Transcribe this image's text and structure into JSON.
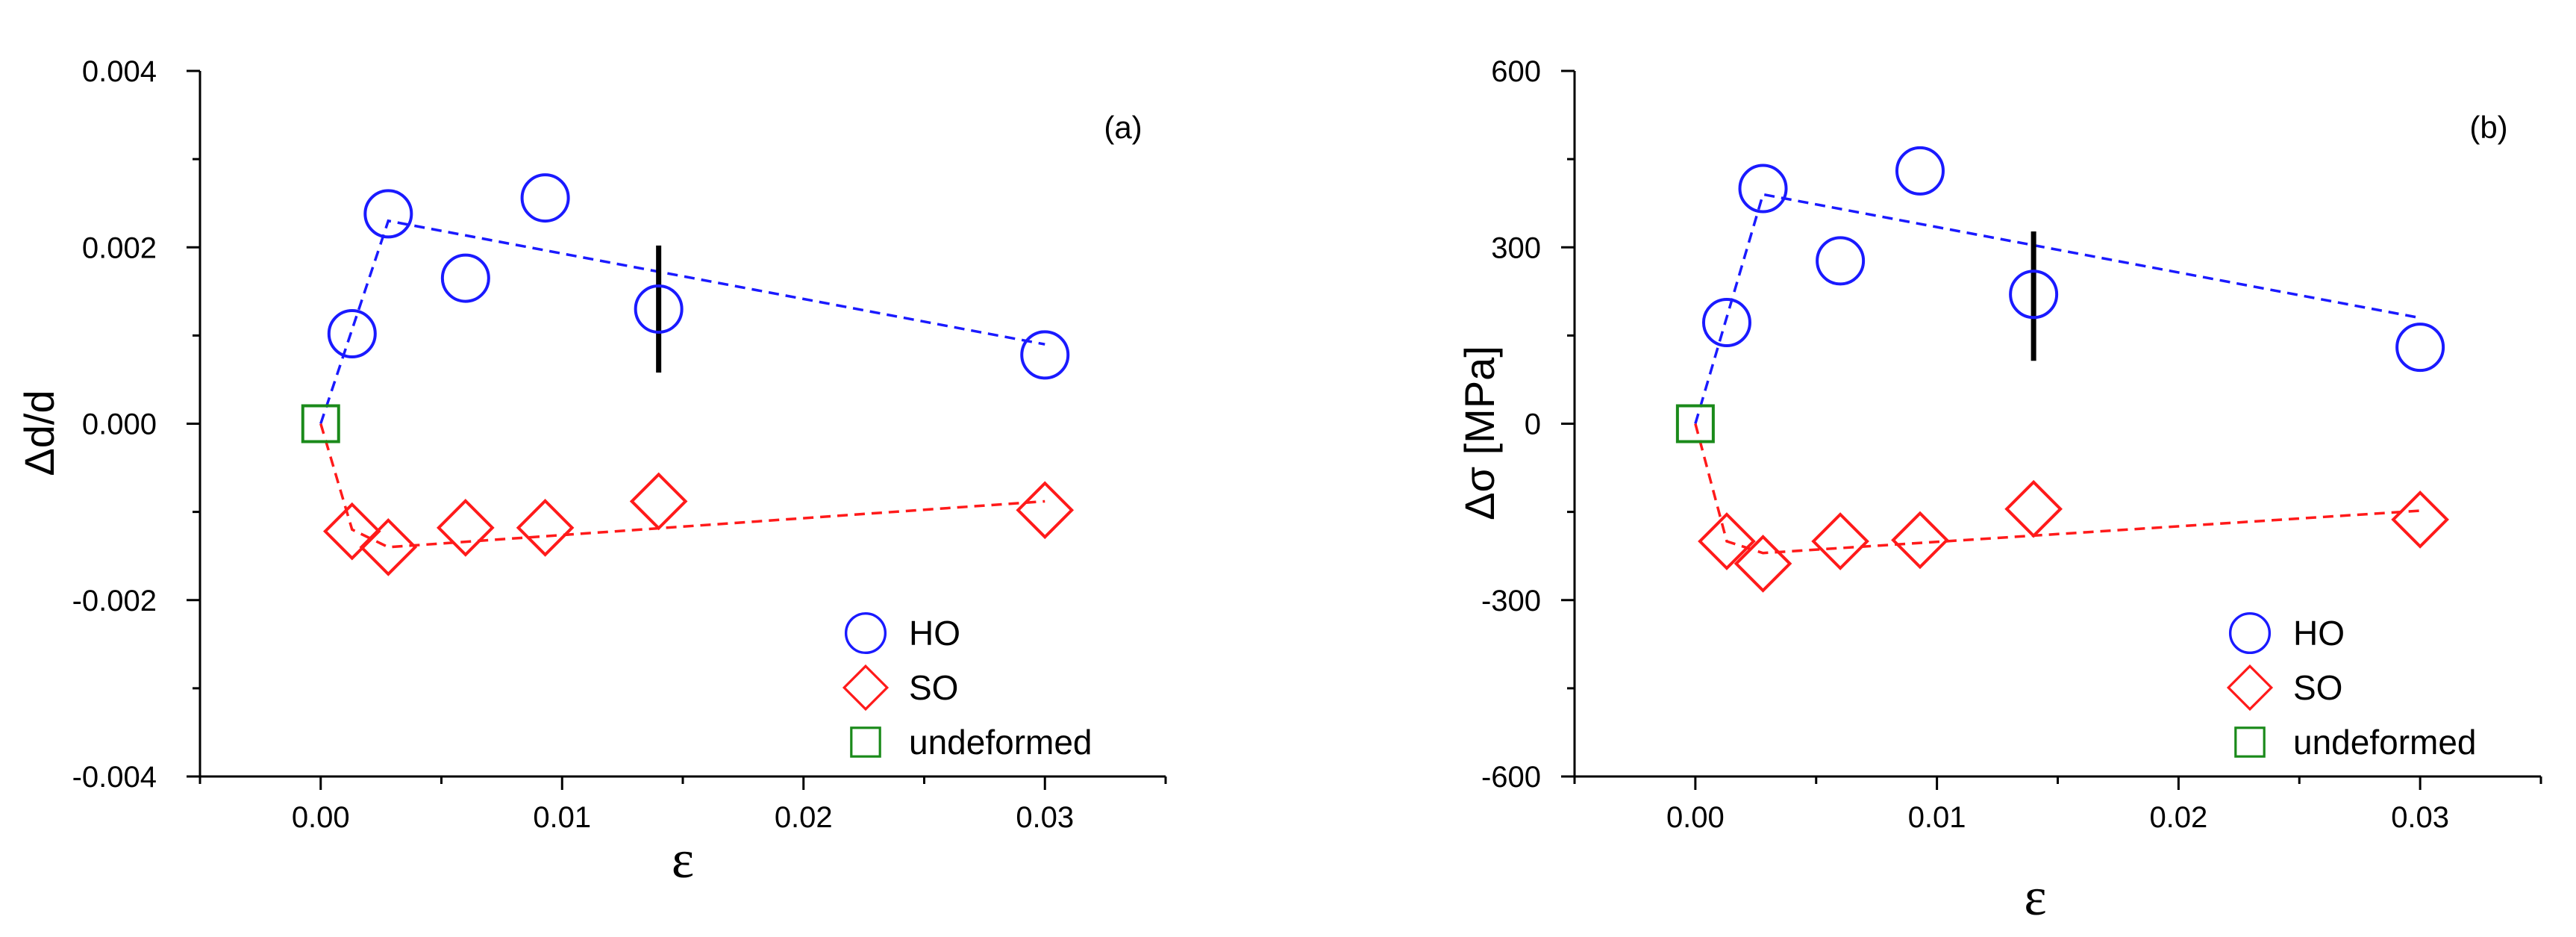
{
  "chart_data": [
    {
      "type": "scatter",
      "panel_label": "(a)",
      "ylabel": "Δd/d",
      "xlabel": "ε",
      "xlim": [
        -0.005,
        0.035
      ],
      "ylim": [
        -0.004,
        0.004
      ],
      "xticks": [
        0.0,
        0.01,
        0.02,
        0.03
      ],
      "xtick_labels": [
        "0.00",
        "0.01",
        "0.02",
        "0.03"
      ],
      "yticks": [
        -0.004,
        -0.002,
        0.0,
        0.002,
        0.004
      ],
      "ytick_labels": [
        "-0.004",
        "-0.002",
        "0.000",
        "0.002",
        "0.004"
      ],
      "legend_position": "bottom-right",
      "series": [
        {
          "name": "HO",
          "marker": "circle",
          "color": "#1a1aff",
          "x": [
            0.0013,
            0.0028,
            0.006,
            0.0093,
            0.014,
            0.03
          ],
          "y": [
            0.00102,
            0.00238,
            0.00165,
            0.00256,
            0.0013,
            0.00078
          ]
        },
        {
          "name": "SO",
          "marker": "diamond",
          "color": "#ff1a1a",
          "x": [
            0.0013,
            0.0028,
            0.006,
            0.0093,
            0.014,
            0.03
          ],
          "y": [
            -0.00122,
            -0.0014,
            -0.00118,
            -0.00118,
            -0.00088,
            -0.00098
          ]
        },
        {
          "name": "undeformed",
          "marker": "square",
          "color": "#1a8a1a",
          "x": [
            0.0
          ],
          "y": [
            0.0
          ]
        }
      ],
      "fit_lines": [
        {
          "series": "HO",
          "color": "#1a1aff",
          "x": [
            0.0,
            0.0028,
            0.03
          ],
          "y": [
            0.0,
            0.0023,
            0.0009
          ]
        },
        {
          "series": "SO",
          "color": "#ff1a1a",
          "x": [
            0.0,
            0.0013,
            0.0028,
            0.03
          ],
          "y": [
            0.0,
            -0.0012,
            -0.0014,
            -0.00088
          ]
        }
      ],
      "error_bar": {
        "x": 0.014,
        "y_low": 0.00058,
        "y_high": 0.00202
      }
    },
    {
      "type": "scatter",
      "panel_label": "(b)",
      "ylabel": "Δσ [MPa]",
      "xlabel": "ε",
      "xlim": [
        -0.005,
        0.035
      ],
      "ylim": [
        -600,
        600
      ],
      "xticks": [
        0.0,
        0.01,
        0.02,
        0.03
      ],
      "xtick_labels": [
        "0.00",
        "0.01",
        "0.02",
        "0.03"
      ],
      "yticks": [
        -600,
        -300,
        0,
        300,
        600
      ],
      "ytick_labels": [
        "-600",
        "-300",
        "0",
        "300",
        "600"
      ],
      "legend_position": "bottom-right",
      "series": [
        {
          "name": "HO",
          "marker": "circle",
          "color": "#1a1aff",
          "x": [
            0.0013,
            0.0028,
            0.006,
            0.0093,
            0.014,
            0.03
          ],
          "y": [
            172,
            400,
            277,
            430,
            220,
            130
          ]
        },
        {
          "name": "SO",
          "marker": "diamond",
          "color": "#ff1a1a",
          "x": [
            0.0013,
            0.0028,
            0.006,
            0.0093,
            0.014,
            0.03
          ],
          "y": [
            -200,
            -238,
            -200,
            -198,
            -145,
            -163
          ]
        },
        {
          "name": "undeformed",
          "marker": "square",
          "color": "#1a8a1a",
          "x": [
            0.0
          ],
          "y": [
            0
          ]
        }
      ],
      "fit_lines": [
        {
          "series": "HO",
          "color": "#1a1aff",
          "x": [
            0.0,
            0.0028,
            0.03
          ],
          "y": [
            0,
            390,
            180
          ]
        },
        {
          "series": "SO",
          "color": "#ff1a1a",
          "x": [
            0.0,
            0.0013,
            0.0028,
            0.03
          ],
          "y": [
            0,
            -200,
            -220,
            -148
          ]
        }
      ],
      "error_bar": {
        "x": 0.014,
        "y_low": 107,
        "y_high": 327
      }
    }
  ]
}
